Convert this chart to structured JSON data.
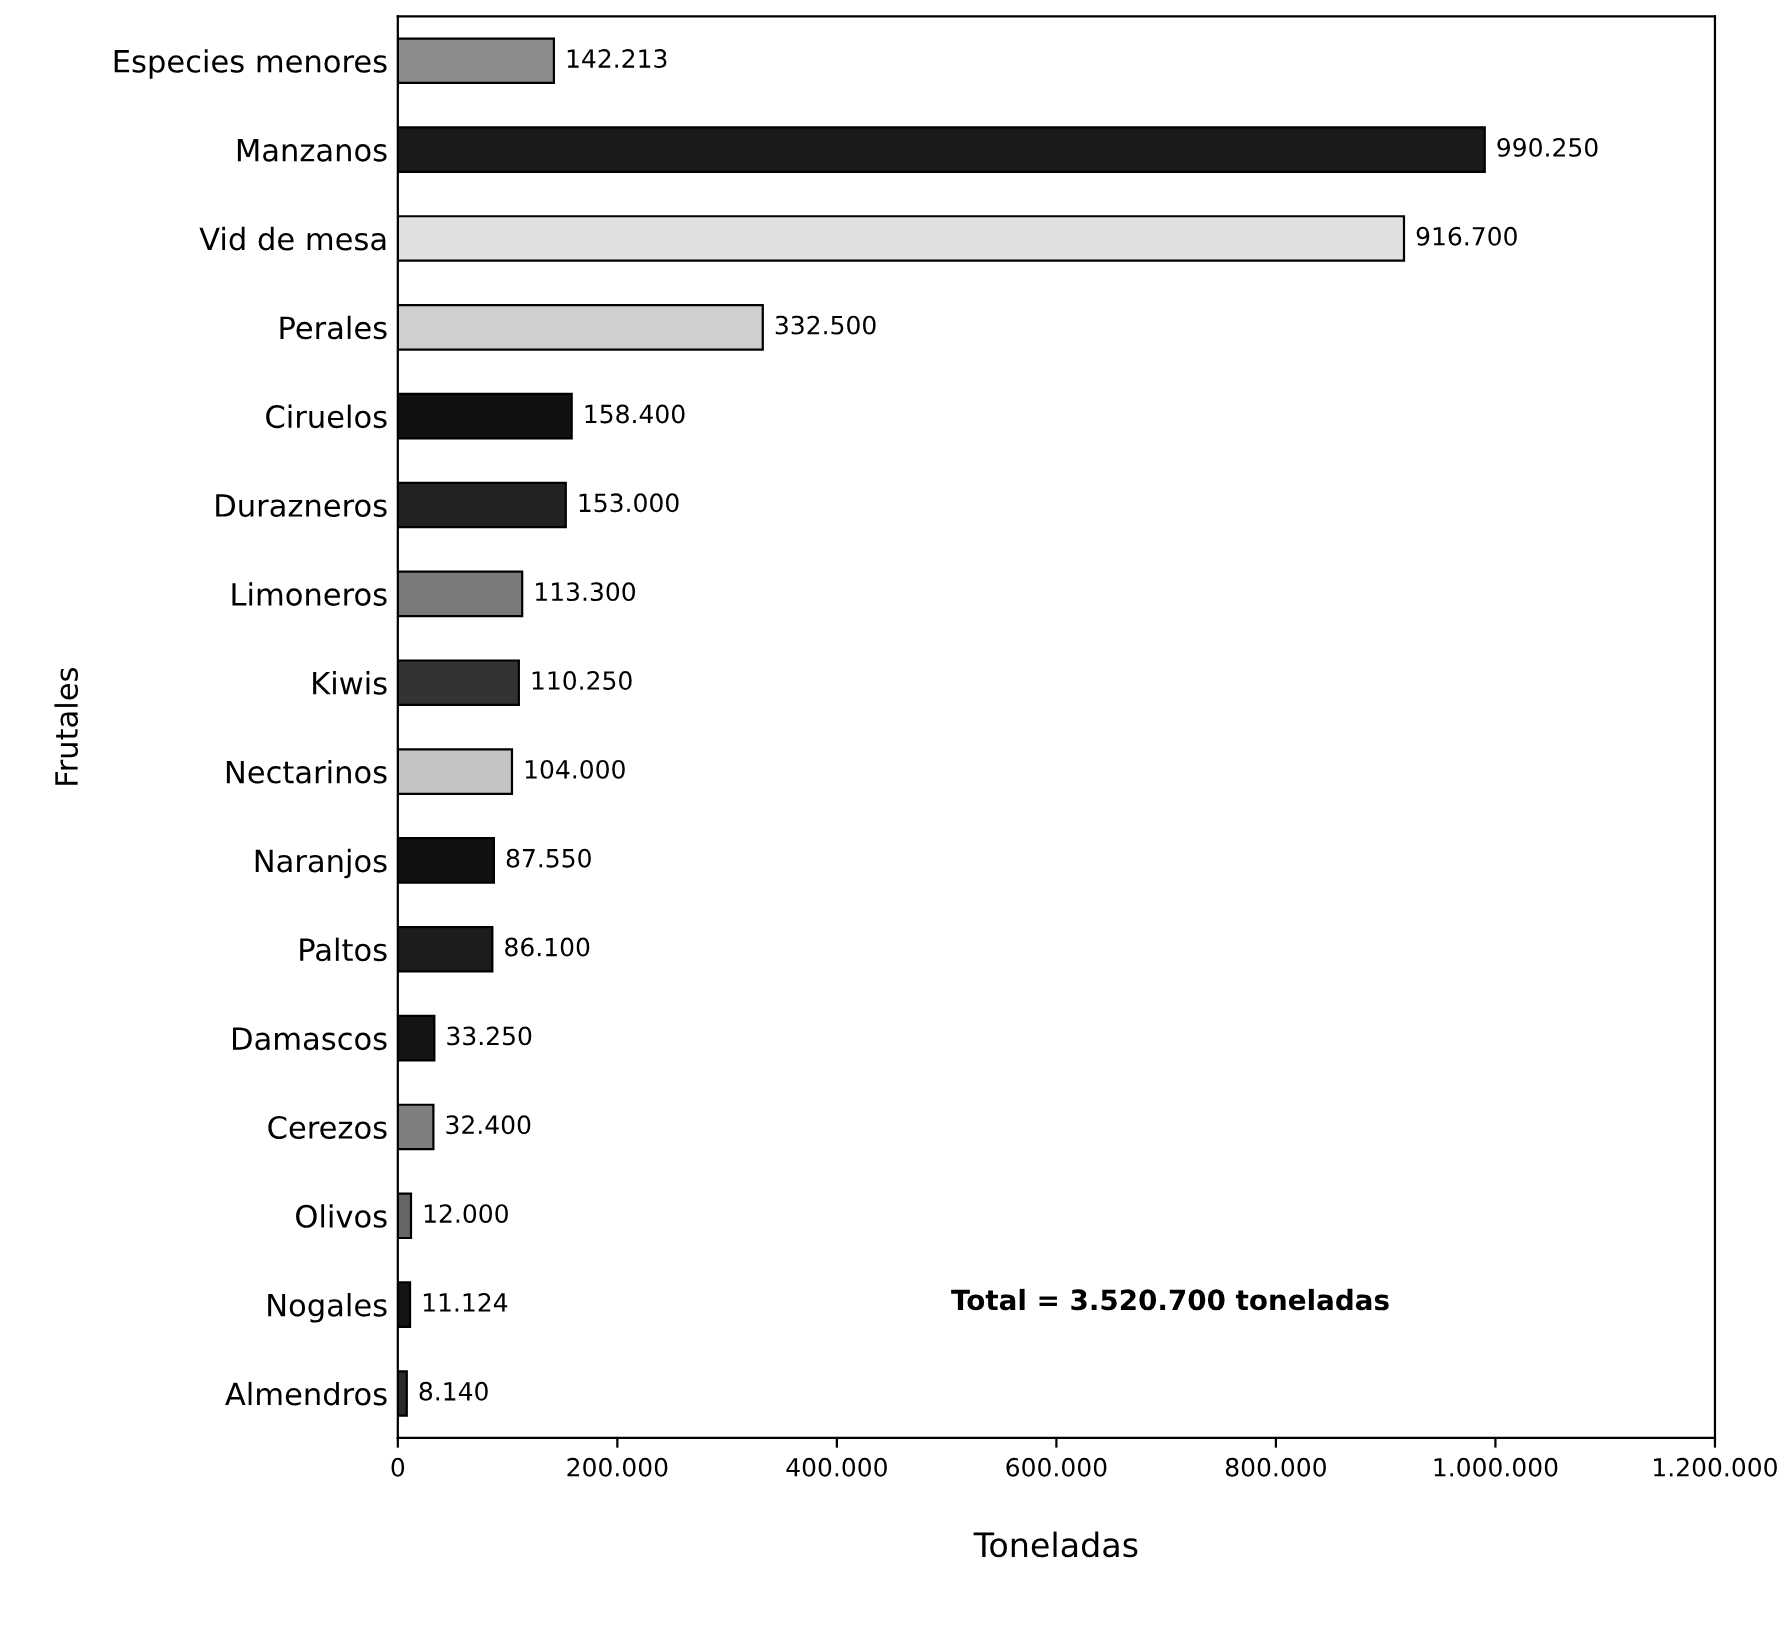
{
  "chart_data": {
    "type": "bar",
    "orientation": "horizontal",
    "xlabel": "Toneladas",
    "ylabel": "Frutales",
    "categories": [
      "Especies menores",
      "Manzanos",
      "Vid de mesa",
      "Perales",
      "Ciruelos",
      "Durazneros",
      "Limoneros",
      "Kiwis",
      "Nectarinos",
      "Naranjos",
      "Paltos",
      "Damascos",
      "Cerezos",
      "Olivos",
      "Nogales",
      "Almendros"
    ],
    "values": [
      142213,
      990250,
      916700,
      332500,
      158400,
      153000,
      113300,
      110250,
      104000,
      87550,
      86100,
      33250,
      32400,
      12000,
      11124,
      8140
    ],
    "value_labels": [
      "142.213",
      "990.250",
      "916.700",
      "332.500",
      "158.400",
      "153.000",
      "113.300",
      "110.250",
      "104.000",
      "87.550",
      "86.100",
      "33.250",
      "32.400",
      "12.000",
      "11.124",
      "8.140"
    ],
    "colors": [
      "#8c8c8c",
      "#1a1a1a",
      "#e0e0e0",
      "#cfcfcf",
      "#111111",
      "#222222",
      "#7a7a7a",
      "#333333",
      "#c4c4c4",
      "#111111",
      "#1c1c1c",
      "#141414",
      "#7f7f7f",
      "#666666",
      "#151515",
      "#2a2a2a"
    ],
    "xlim": [
      0,
      1200000
    ],
    "xticks": [
      {
        "value": 0,
        "label": "0"
      },
      {
        "value": 200000,
        "label": "200.000"
      },
      {
        "value": 400000,
        "label": "400.000"
      },
      {
        "value": 600000,
        "label": "600.000"
      },
      {
        "value": 800000,
        "label": "800.000"
      },
      {
        "value": 1000000,
        "label": "1.000.000"
      },
      {
        "value": 1200000,
        "label": "1.200.000"
      }
    ],
    "grid": false,
    "legend": false,
    "annotations": [
      "Total = 3.520.700 toneladas"
    ]
  }
}
